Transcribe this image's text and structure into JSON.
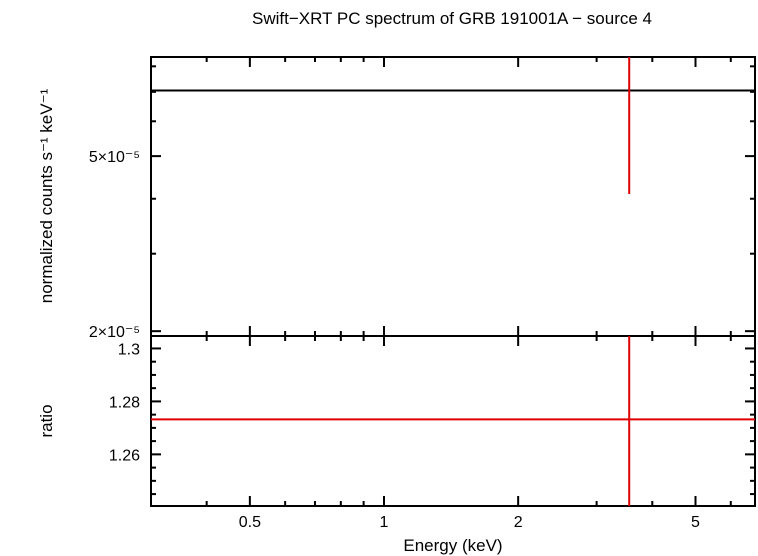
{
  "chart_data": [
    {
      "type": "line",
      "panel": "spectrum",
      "title": "Swift−XRT PC spectrum of GRB 191001A − source 4",
      "ylabel": "normalized counts s⁻¹ keV⁻¹",
      "yscale": "log",
      "xscale": "log",
      "xlim": [
        0.3,
        6.8
      ],
      "ylim": [
        1.95e-05,
        8.4e-05
      ],
      "yticks": [
        {
          "value": 2e-05,
          "label": "2×10⁻⁵"
        },
        {
          "value": 5e-05,
          "label": "5×10⁻⁵"
        }
      ],
      "series": [
        {
          "role": "model",
          "color": "#000000",
          "x": [
            0.3,
            6.8
          ],
          "y": [
            7.05e-05,
            7.05e-05
          ]
        },
        {
          "role": "data",
          "color": "#e00000",
          "points": [
            {
              "x": 3.55,
              "y_low": 4.1e-05,
              "y_high": 8.4e-05
            }
          ]
        }
      ],
      "grid": false
    },
    {
      "type": "line",
      "panel": "ratio",
      "xlabel": "Energy (keV)",
      "ylabel": "ratio",
      "xscale": "log",
      "xlim": [
        0.3,
        6.8
      ],
      "ylim": [
        1.2405,
        1.3047
      ],
      "yticks": [
        {
          "value": 1.26,
          "label": "1.26"
        },
        {
          "value": 1.28,
          "label": "1.28"
        },
        {
          "value": 1.3,
          "label": "1.3"
        }
      ],
      "xticks": [
        {
          "value": 0.5,
          "label": "0.5"
        },
        {
          "value": 1,
          "label": "1"
        },
        {
          "value": 2,
          "label": "2"
        },
        {
          "value": 5,
          "label": "5"
        }
      ],
      "series": [
        {
          "role": "data",
          "color": "#e00000",
          "points": [
            {
              "x": 3.55,
              "y": 1.2732,
              "x_low": 0.3,
              "x_high": 6.8,
              "y_low": 1.2405,
              "y_high": 1.3047
            }
          ]
        }
      ],
      "grid": false
    }
  ]
}
